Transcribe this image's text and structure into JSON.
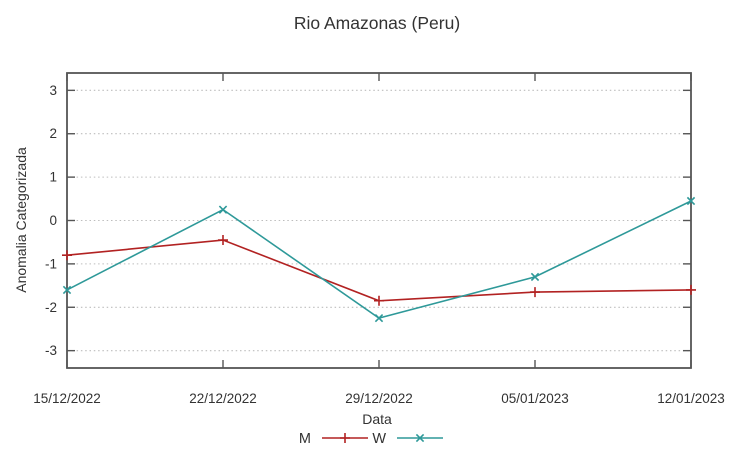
{
  "chart_data": {
    "type": "line",
    "title": "Rio Amazonas (Peru)",
    "xlabel": "Data",
    "ylabel": "Anomalia Categorizada",
    "categories": [
      "15/12/2022",
      "22/12/2022",
      "29/12/2022",
      "05/01/2023",
      "12/01/2023"
    ],
    "series": [
      {
        "name": "M",
        "color": "#b22222",
        "marker": "plus",
        "values": [
          -0.8,
          -0.45,
          -1.85,
          -1.65,
          -1.6
        ]
      },
      {
        "name": "W",
        "color": "#2e9999",
        "marker": "cross",
        "values": [
          -1.6,
          0.25,
          -2.25,
          -1.3,
          0.45
        ]
      }
    ],
    "yticks": [
      -3,
      -2,
      -1,
      0,
      1,
      2,
      3
    ],
    "ylim": [
      -3.4,
      3.4
    ],
    "grid": "horizontal-dotted",
    "legend_position": "bottom-center",
    "colors": {
      "axis": "#555555",
      "text": "#333333",
      "grid": "#bdbdbd",
      "background": "#ffffff"
    }
  }
}
